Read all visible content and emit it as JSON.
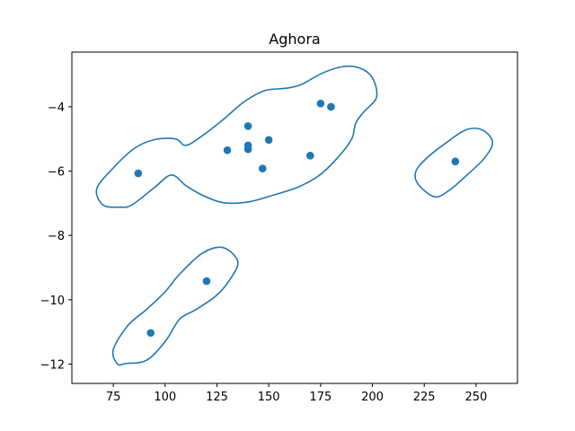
{
  "chart_data": {
    "type": "scatter",
    "title": "Aghora",
    "xlabel": "",
    "ylabel": "",
    "xlim": [
      55,
      270
    ],
    "ylim": [
      -12.6,
      -2.3
    ],
    "x_ticks": [
      75,
      100,
      125,
      150,
      175,
      200,
      225,
      250
    ],
    "y_ticks": [
      -12,
      -10,
      -8,
      -6,
      -4
    ],
    "grid": false,
    "legend": "none",
    "color": "#1f77b4",
    "points": [
      {
        "x": 87,
        "y": -6.07
      },
      {
        "x": 130,
        "y": -5.35
      },
      {
        "x": 140,
        "y": -4.6
      },
      {
        "x": 140,
        "y": -5.2
      },
      {
        "x": 140,
        "y": -5.32
      },
      {
        "x": 147,
        "y": -5.92
      },
      {
        "x": 150,
        "y": -5.03
      },
      {
        "x": 170,
        "y": -5.52
      },
      {
        "x": 175,
        "y": -3.9
      },
      {
        "x": 180,
        "y": -4.0
      },
      {
        "x": 240,
        "y": -5.7
      },
      {
        "x": 120,
        "y": -9.42
      },
      {
        "x": 93,
        "y": -11.03
      }
    ],
    "contours": [
      [
        [
          84,
          -7.05
        ],
        [
          95,
          -6.5
        ],
        [
          103,
          -6.12
        ],
        [
          110,
          -6.45
        ],
        [
          118,
          -6.75
        ],
        [
          128,
          -6.98
        ],
        [
          140,
          -6.96
        ],
        [
          152,
          -6.75
        ],
        [
          164,
          -6.5
        ],
        [
          174,
          -6.15
        ],
        [
          183,
          -5.6
        ],
        [
          190,
          -5.0
        ],
        [
          192,
          -4.5
        ],
        [
          196,
          -4.15
        ],
        [
          202,
          -3.7
        ],
        [
          200,
          -3.1
        ],
        [
          194,
          -2.8
        ],
        [
          186,
          -2.75
        ],
        [
          176,
          -2.95
        ],
        [
          166,
          -3.3
        ],
        [
          159,
          -3.42
        ],
        [
          148,
          -3.5
        ],
        [
          138,
          -3.85
        ],
        [
          128,
          -4.4
        ],
        [
          118,
          -4.9
        ],
        [
          110,
          -5.2
        ],
        [
          105,
          -5.0
        ],
        [
          95,
          -5.02
        ],
        [
          85,
          -5.3
        ],
        [
          75,
          -5.9
        ],
        [
          67,
          -6.55
        ],
        [
          70,
          -7.05
        ],
        [
          78,
          -7.12
        ]
      ],
      [
        [
          222,
          -6.4
        ],
        [
          230,
          -6.8
        ],
        [
          237,
          -6.6
        ],
        [
          246,
          -6.1
        ],
        [
          254,
          -5.6
        ],
        [
          258,
          -5.1
        ],
        [
          253,
          -4.72
        ],
        [
          245,
          -4.72
        ],
        [
          236,
          -5.1
        ],
        [
          227,
          -5.55
        ],
        [
          221,
          -6.0
        ]
      ],
      [
        [
          81,
          -11.98
        ],
        [
          91,
          -11.88
        ],
        [
          100,
          -11.3
        ],
        [
          107,
          -10.6
        ],
        [
          115,
          -10.3
        ],
        [
          125,
          -9.85
        ],
        [
          132,
          -9.3
        ],
        [
          135,
          -8.8
        ],
        [
          128,
          -8.38
        ],
        [
          118,
          -8.55
        ],
        [
          107,
          -9.2
        ],
        [
          100,
          -9.75
        ],
        [
          91,
          -10.3
        ],
        [
          82,
          -10.8
        ],
        [
          75,
          -11.55
        ],
        [
          77,
          -12.0
        ]
      ]
    ]
  }
}
